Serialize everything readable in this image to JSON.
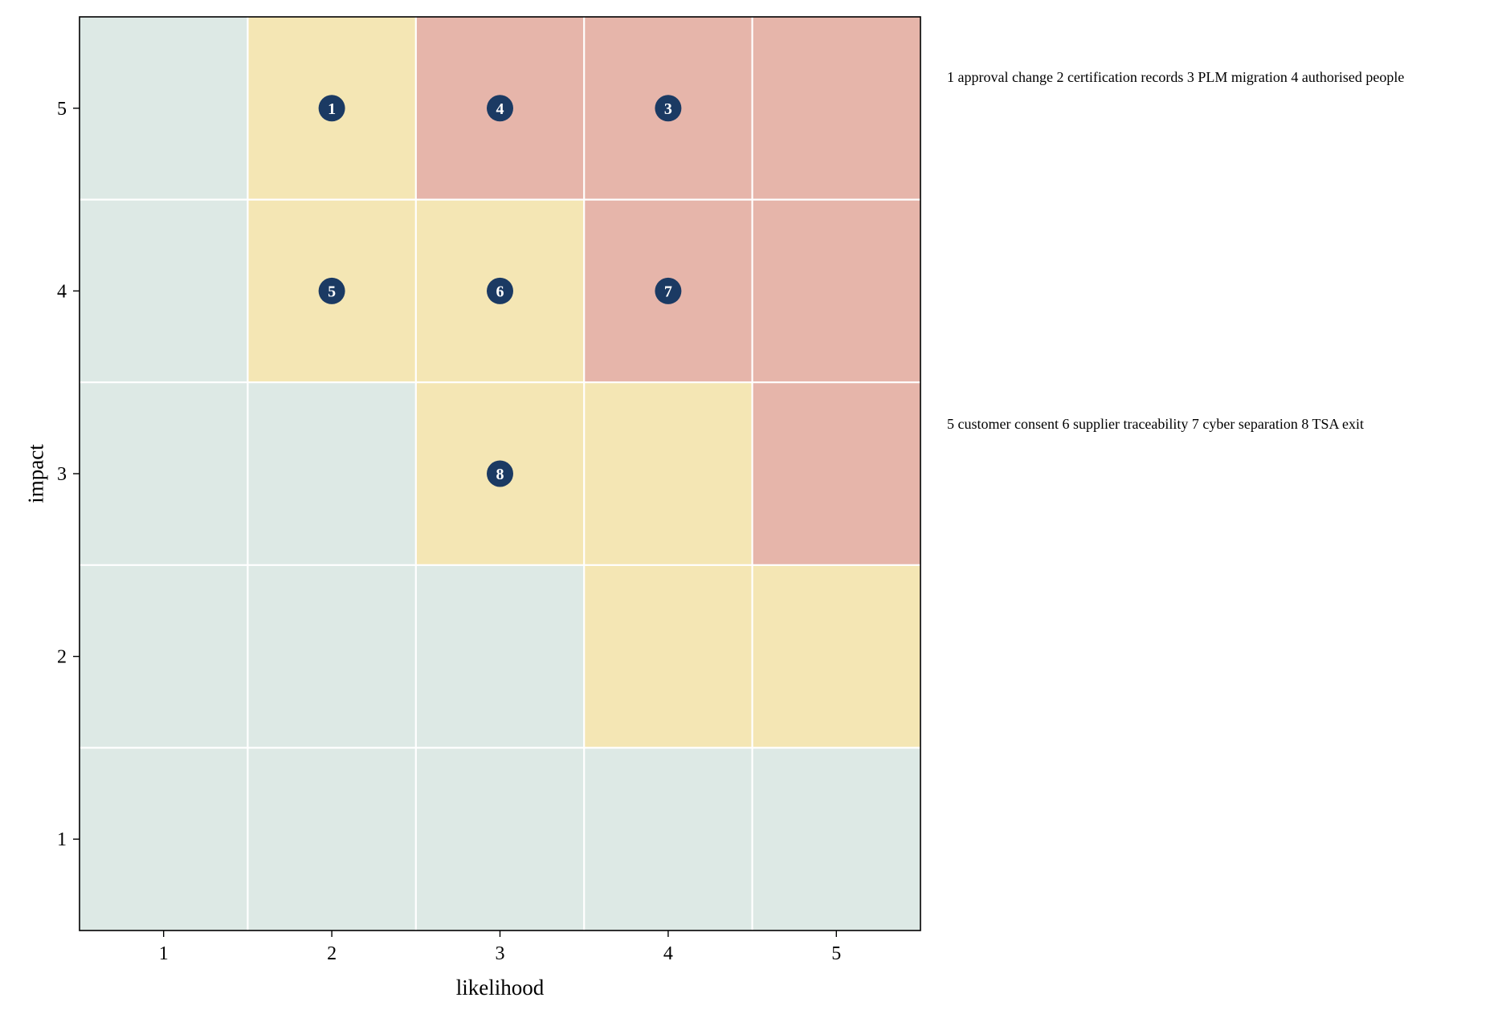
{
  "chart_data": {
    "type": "heatmap",
    "title": "",
    "xlabel": "likelihood",
    "ylabel": "impact",
    "x_ticks": [
      "1",
      "2",
      "3",
      "4",
      "5"
    ],
    "y_ticks": [
      "1",
      "2",
      "3",
      "4",
      "5"
    ],
    "xlim": [
      0.5,
      5.5
    ],
    "ylim": [
      0.5,
      5.5
    ],
    "grid": true,
    "colors": {
      "low": "#dde9e5",
      "medium": "#f4e6b4",
      "high": "#e6b5aa",
      "marker": "#1b3a63",
      "marker_text": "#ffffff"
    },
    "cell_levels": [
      [
        "low",
        "low",
        "low",
        "low",
        "low"
      ],
      [
        "low",
        "low",
        "low",
        "medium",
        "medium"
      ],
      [
        "low",
        "low",
        "medium",
        "medium",
        "high"
      ],
      [
        "low",
        "medium",
        "medium",
        "high",
        "high"
      ],
      [
        "low",
        "medium",
        "high",
        "high",
        "high"
      ]
    ],
    "risks": [
      {
        "id": "1",
        "likelihood": 2,
        "impact": 5
      },
      {
        "id": "4",
        "likelihood": 3,
        "impact": 5
      },
      {
        "id": "3",
        "likelihood": 4,
        "impact": 5
      },
      {
        "id": "5",
        "likelihood": 2,
        "impact": 4
      },
      {
        "id": "6",
        "likelihood": 3,
        "impact": 4
      },
      {
        "id": "7",
        "likelihood": 4,
        "impact": 4
      },
      {
        "id": "8",
        "likelihood": 3,
        "impact": 3
      }
    ],
    "legend": {
      "placement": "right",
      "line1": "1 approval change  2 certification records  3 PLM migration  4 authorised people",
      "line2": "5 customer consent  6 supplier traceability  7 cyber separation  8 TSA exit"
    }
  }
}
